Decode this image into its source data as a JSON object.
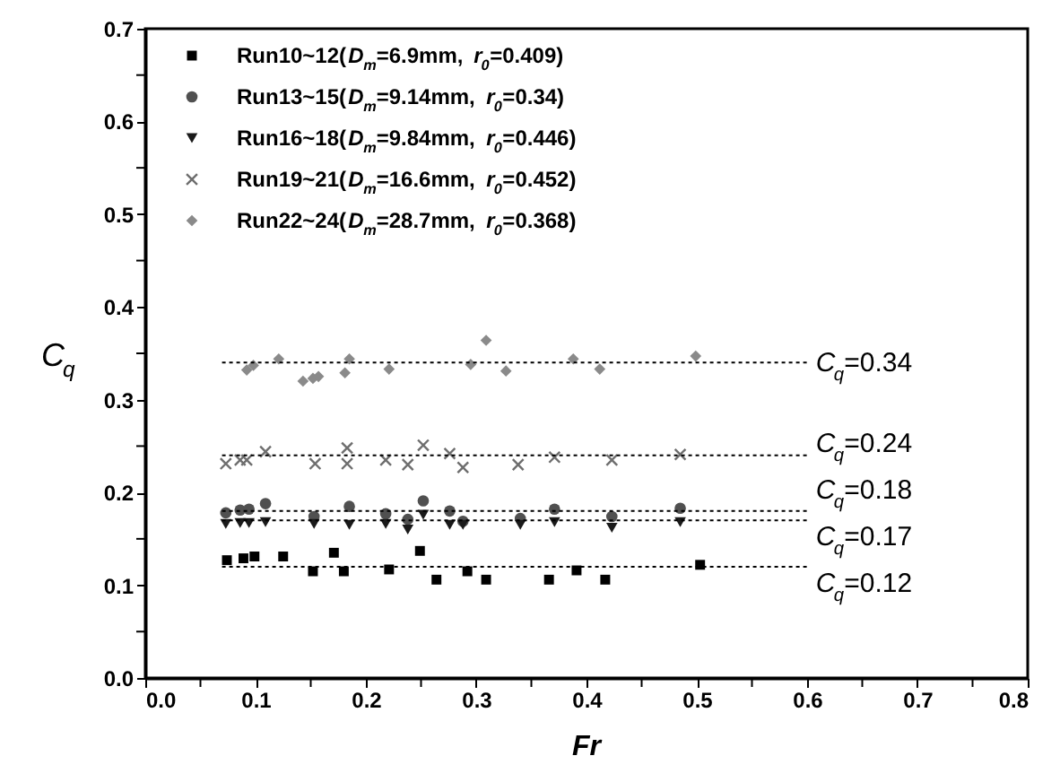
{
  "chart_data": {
    "type": "scatter",
    "xlabel": "Fr",
    "ylabel": "C$_{q}$",
    "xlim": [
      0,
      0.8
    ],
    "ylim": [
      0,
      0.7
    ],
    "xticks": [
      {
        "value": 0,
        "label": "0.0"
      },
      {
        "value": 0.05,
        "label": null
      },
      {
        "value": 0.1,
        "label": "0.1"
      },
      {
        "value": 0.15,
        "label": null
      },
      {
        "value": 0.2,
        "label": "0.2"
      },
      {
        "value": 0.25,
        "label": null
      },
      {
        "value": 0.3,
        "label": "0.3"
      },
      {
        "value": 0.35,
        "label": null
      },
      {
        "value": 0.4,
        "label": "0.4"
      },
      {
        "value": 0.45,
        "label": null
      },
      {
        "value": 0.5,
        "label": "0.5"
      },
      {
        "value": 0.55,
        "label": null
      },
      {
        "value": 0.6,
        "label": "0.6"
      },
      {
        "value": 0.65,
        "label": null
      },
      {
        "value": 0.7,
        "label": "0.7"
      },
      {
        "value": 0.75,
        "label": null
      },
      {
        "value": 0.8,
        "label": "0.8"
      }
    ],
    "yticks": [
      {
        "value": 0,
        "label": "0.0"
      },
      {
        "value": 0.05,
        "label": null
      },
      {
        "value": 0.1,
        "label": "0.1"
      },
      {
        "value": 0.15,
        "label": null
      },
      {
        "value": 0.2,
        "label": "0.2"
      },
      {
        "value": 0.25,
        "label": null
      },
      {
        "value": 0.3,
        "label": "0.3"
      },
      {
        "value": 0.35,
        "label": null
      },
      {
        "value": 0.4,
        "label": "0.4"
      },
      {
        "value": 0.45,
        "label": null
      },
      {
        "value": 0.5,
        "label": "0.5"
      },
      {
        "value": 0.55,
        "label": null
      },
      {
        "value": 0.6,
        "label": "0.6"
      },
      {
        "value": 0.65,
        "label": null
      },
      {
        "value": 0.7,
        "label": "0.7"
      }
    ],
    "grid": false,
    "legend": "top left",
    "series": [
      {
        "name": "Run10~12(D$_{m}$=6.9mm, r$_{0}$=0.409)",
        "color": "#000000",
        "marker": "square",
        "x": [
          0.074,
          0.089,
          0.099,
          0.125,
          0.152,
          0.171,
          0.18,
          0.221,
          0.249,
          0.264,
          0.292,
          0.309,
          0.366,
          0.391,
          0.417,
          0.503
        ],
        "values": [
          0.127,
          0.129,
          0.131,
          0.131,
          0.115,
          0.135,
          0.115,
          0.117,
          0.137,
          0.106,
          0.115,
          0.106,
          0.106,
          0.116,
          0.106,
          0.122
        ]
      },
      {
        "name": "Run13~15(D$_{m}$=9.14mm, r$_{0}$=0.34)",
        "color": "#505050",
        "marker": "circle",
        "x": [
          0.073,
          0.086,
          0.094,
          0.109,
          0.153,
          0.185,
          0.218,
          0.238,
          0.252,
          0.276,
          0.288,
          0.34,
          0.371,
          0.423,
          0.485
        ],
        "values": [
          0.178,
          0.181,
          0.182,
          0.188,
          0.174,
          0.185,
          0.177,
          0.171,
          0.191,
          0.18,
          0.169,
          0.172,
          0.182,
          0.174,
          0.183
        ]
      },
      {
        "name": "Run16~18(D$_{m}$=9.84mm, r$_{0}$=0.446)",
        "color": "#1a1a1a",
        "marker": "triangle",
        "x": [
          0.073,
          0.086,
          0.094,
          0.109,
          0.153,
          0.185,
          0.218,
          0.238,
          0.252,
          0.276,
          0.288,
          0.34,
          0.371,
          0.423,
          0.485
        ],
        "values": [
          0.166,
          0.167,
          0.167,
          0.168,
          0.166,
          0.165,
          0.166,
          0.16,
          0.176,
          0.165,
          0.165,
          0.165,
          0.168,
          0.162,
          0.168
        ]
      },
      {
        "name": "Run19~21(D$_{m}$=16.6mm, r$_{0}$=0.452)",
        "color": "#6e6e6e",
        "marker": "cross",
        "x": [
          0.073,
          0.086,
          0.092,
          0.109,
          0.154,
          0.183,
          0.183,
          0.218,
          0.238,
          0.252,
          0.276,
          0.288,
          0.338,
          0.371,
          0.423,
          0.485
        ],
        "values": [
          0.231,
          0.235,
          0.235,
          0.244,
          0.231,
          0.248,
          0.231,
          0.235,
          0.23,
          0.251,
          0.242,
          0.227,
          0.23,
          0.238,
          0.235,
          0.241
        ]
      },
      {
        "name": "Run22~24(D$_{m}$=28.7mm, r$_{0}$=0.368)",
        "color": "#8a8a8a",
        "marker": "diamond",
        "x": [
          0.092,
          0.098,
          0.121,
          0.143,
          0.152,
          0.157,
          0.181,
          0.185,
          0.221,
          0.295,
          0.309,
          0.327,
          0.388,
          0.412,
          0.499
        ],
        "values": [
          0.332,
          0.337,
          0.344,
          0.32,
          0.323,
          0.325,
          0.329,
          0.344,
          0.333,
          0.338,
          0.364,
          0.331,
          0.344,
          0.333,
          0.347
        ]
      }
    ],
    "ref_lines": [
      {
        "axis": "y",
        "value": 0.34,
        "label": "C$_{q}$=0.34",
        "line_style": "dotted"
      },
      {
        "axis": "y",
        "value": 0.24,
        "label": "C$_{q}$=0.24",
        "line_style": "dotted"
      },
      {
        "axis": "y",
        "value": 0.18,
        "label": "C$_{q}$=0.18",
        "line_style": "dotted"
      },
      {
        "axis": "y",
        "value": 0.17,
        "label": "C$_{q}$=0.17",
        "line_style": "dotted"
      },
      {
        "axis": "y",
        "value": 0.12,
        "label": "C$_{q}$=0.12",
        "line_style": "dotted"
      }
    ]
  }
}
